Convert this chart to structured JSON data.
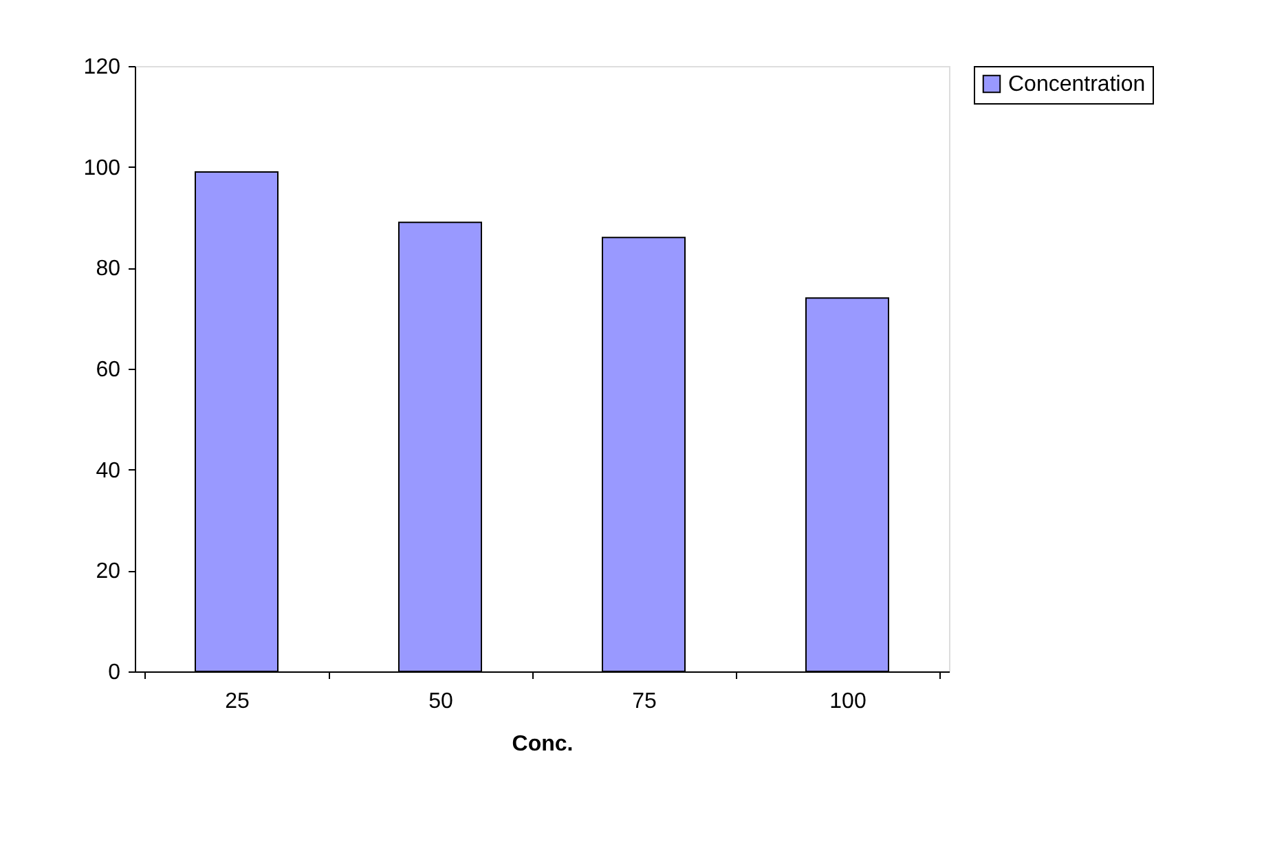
{
  "chart_data": {
    "type": "bar",
    "xlabel": "Conc.",
    "categories": [
      "25",
      "50",
      "75",
      "100"
    ],
    "series": [
      {
        "name": "Concentration",
        "color": "#9999ff",
        "values": [
          99,
          89,
          86,
          74
        ]
      }
    ],
    "ylim": [
      0,
      120
    ],
    "yticks": [
      0,
      20,
      40,
      60,
      80,
      100,
      120
    ],
    "grid": false,
    "legend": "right"
  }
}
